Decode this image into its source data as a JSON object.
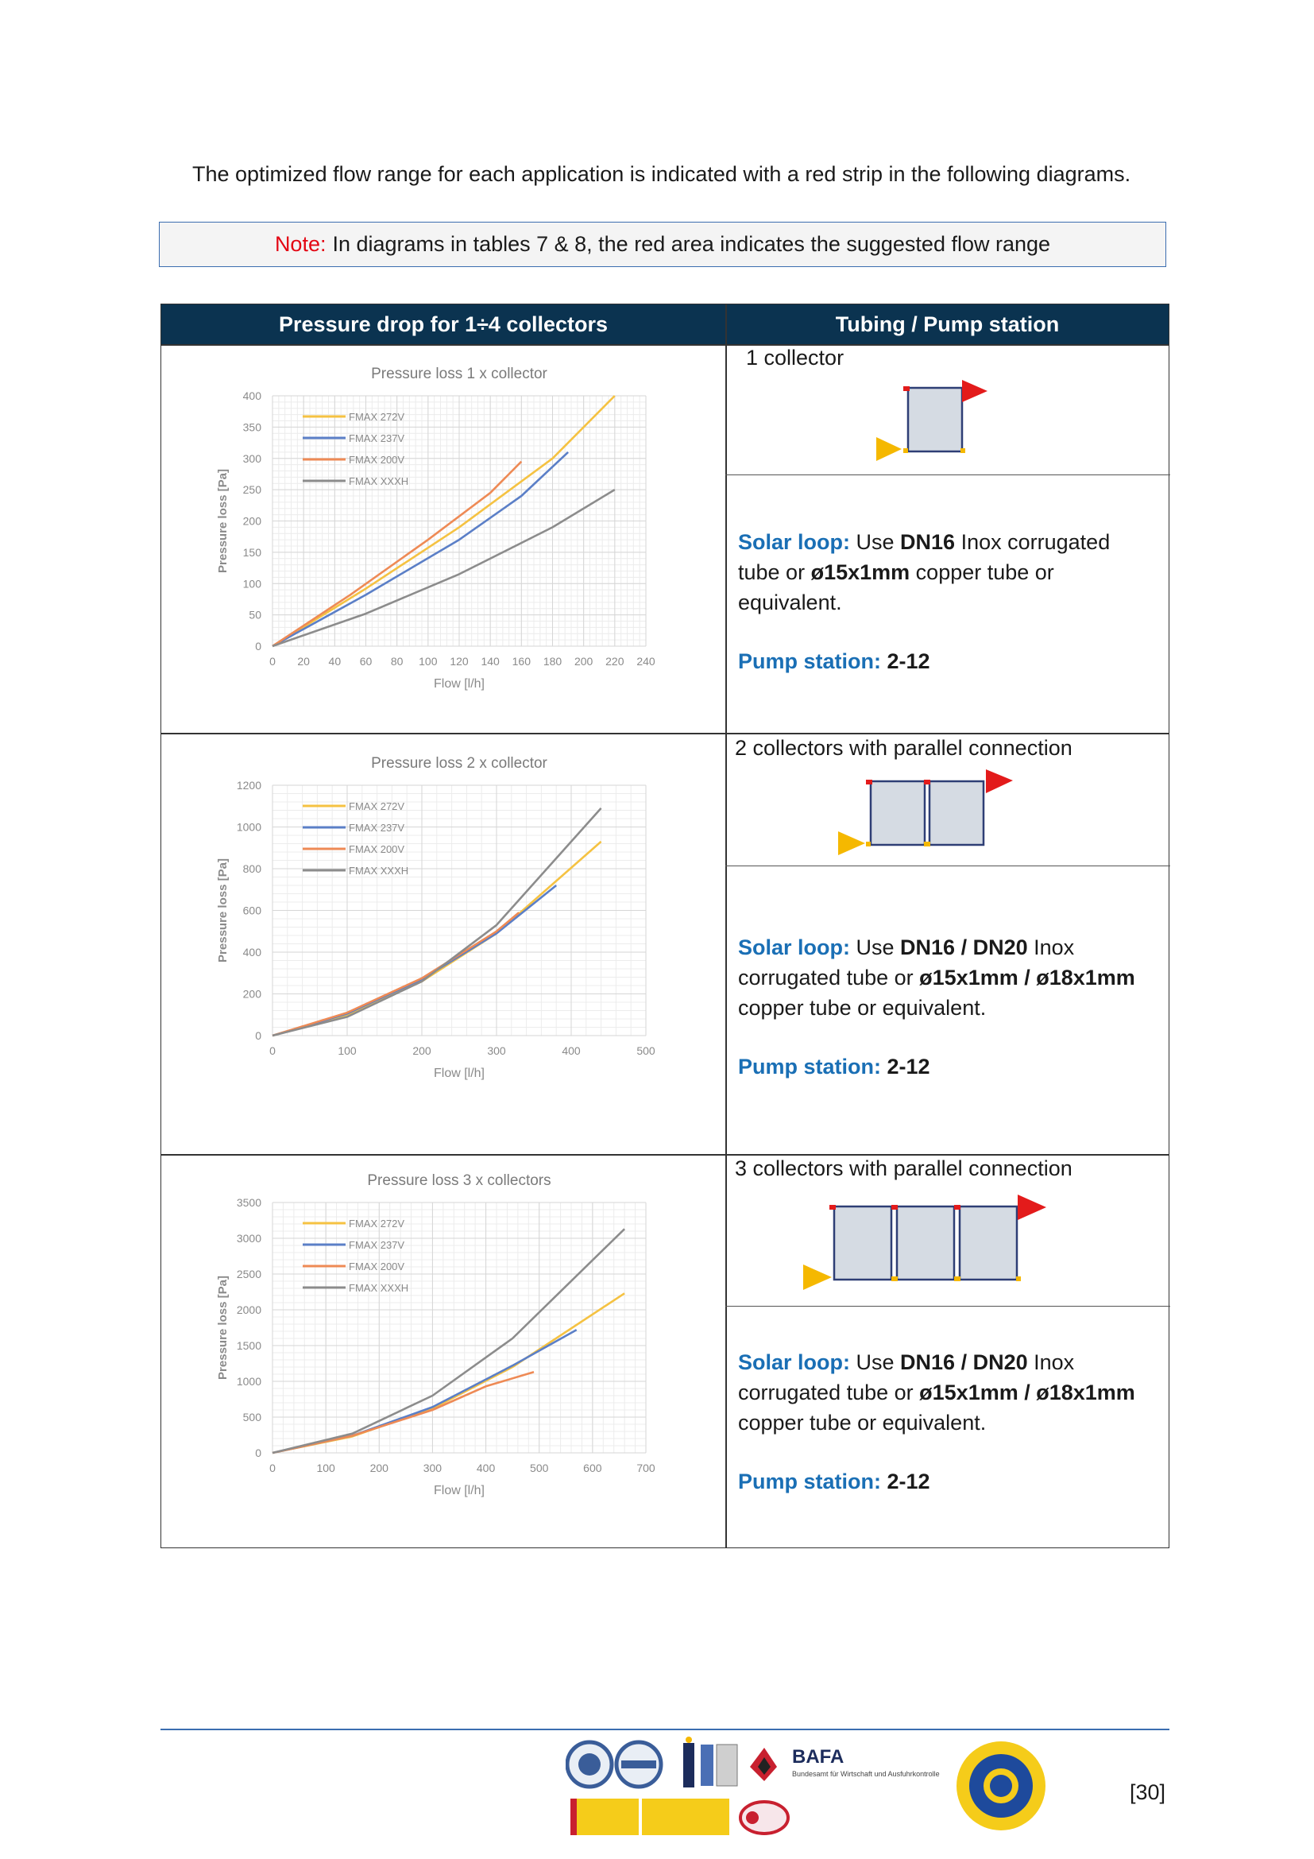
{
  "intro": "The optimized flow range for each application is indicated with a red strip in the following diagrams.",
  "note": {
    "label": "Note:",
    "text": "In diagrams in tables 7 & 8, the red area indicates the suggested flow range"
  },
  "table": {
    "col1_header": "Pressure drop for 1÷4 collectors",
    "col2_header": "Tubing / Pump station"
  },
  "rows": [
    {
      "config": "1 collector",
      "solar_label": "Solar loop:",
      "solar_pre": "Use",
      "solar_b1": "DN16",
      "solar_mid": "Inox corrugated tube or",
      "solar_b2": "ø15x1mm",
      "solar_post": "copper tube or equivalent.",
      "pump_label": "Pump station:",
      "pump_value": "2-12"
    },
    {
      "config": "2 collectors with parallel connection",
      "solar_label": "Solar loop:",
      "solar_pre": "Use",
      "solar_b1": "DN16 / DN20",
      "solar_mid": "Inox corrugated tube or",
      "solar_b2": "ø15x1mm / ø18x1mm",
      "solar_post": "copper tube or equivalent.",
      "pump_label": "Pump station:",
      "pump_value": "2-12"
    },
    {
      "config": "3 collectors with parallel connection",
      "solar_label": "Solar loop:",
      "solar_pre": "Use",
      "solar_b1": "DN16 / DN20",
      "solar_mid": "Inox corrugated tube or",
      "solar_b2": "ø15x1mm / ø18x1mm",
      "solar_post": "copper tube or equivalent.",
      "pump_label": "Pump station:",
      "pump_value": "2-12"
    }
  ],
  "chart_data": [
    {
      "type": "line",
      "title": "Pressure loss 1 x collector",
      "xlabel": "Flow [l/h]",
      "ylabel": "Pressure loss [Pa]",
      "xlim": [
        0,
        240
      ],
      "ylim": [
        0,
        400
      ],
      "xticks": [
        0,
        20,
        40,
        60,
        80,
        100,
        120,
        140,
        160,
        180,
        200,
        220,
        240
      ],
      "yticks": [
        0,
        50,
        100,
        150,
        200,
        250,
        300,
        350,
        400
      ],
      "grid": true,
      "legend": "top-left",
      "series": [
        {
          "name": "FMAX 272V",
          "color": "#f5c242",
          "x": [
            0,
            60,
            120,
            180,
            220
          ],
          "y": [
            0,
            92,
            190,
            300,
            400
          ]
        },
        {
          "name": "FMAX 237V",
          "color": "#5b7fc7",
          "x": [
            0,
            60,
            120,
            160,
            190
          ],
          "y": [
            0,
            82,
            170,
            240,
            310
          ]
        },
        {
          "name": "FMAX 200V",
          "color": "#ee8a55",
          "x": [
            0,
            50,
            100,
            140,
            160
          ],
          "y": [
            0,
            82,
            170,
            245,
            295
          ]
        },
        {
          "name": "FMAX XXXH",
          "color": "#8c8c8c",
          "x": [
            0,
            60,
            120,
            180,
            220
          ],
          "y": [
            0,
            52,
            115,
            190,
            250
          ]
        }
      ]
    },
    {
      "type": "line",
      "title": "Pressure loss 2 x collector",
      "xlabel": "Flow [l/h]",
      "ylabel": "Pressure loss [Pa]",
      "xlim": [
        0,
        500
      ],
      "ylim": [
        0,
        1200
      ],
      "xticks": [
        0,
        100,
        200,
        300,
        400,
        500
      ],
      "yticks": [
        0,
        200,
        400,
        600,
        800,
        1000,
        1200
      ],
      "grid": true,
      "legend": "top-left",
      "series": [
        {
          "name": "FMAX 272V",
          "color": "#f5c242",
          "x": [
            0,
            100,
            200,
            300,
            440
          ],
          "y": [
            0,
            100,
            260,
            490,
            930
          ]
        },
        {
          "name": "FMAX 237V",
          "color": "#5b7fc7",
          "x": [
            0,
            100,
            200,
            300,
            380
          ],
          "y": [
            0,
            105,
            270,
            490,
            720
          ]
        },
        {
          "name": "FMAX 200V",
          "color": "#ee8a55",
          "x": [
            0,
            100,
            200,
            300,
            330
          ],
          "y": [
            0,
            110,
            275,
            500,
            590
          ]
        },
        {
          "name": "FMAX XXXH",
          "color": "#8c8c8c",
          "x": [
            0,
            100,
            200,
            300,
            440
          ],
          "y": [
            0,
            90,
            260,
            530,
            1090
          ]
        }
      ]
    },
    {
      "type": "line",
      "title": "Pressure loss 3 x collectors",
      "xlabel": "Flow [l/h]",
      "ylabel": "Pressure loss [Pa]",
      "xlim": [
        0,
        700
      ],
      "ylim": [
        0,
        3500
      ],
      "xticks": [
        0,
        100,
        200,
        300,
        400,
        500,
        600,
        700
      ],
      "yticks": [
        0,
        500,
        1000,
        1500,
        2000,
        2500,
        3000,
        3500
      ],
      "grid": true,
      "legend": "top-left",
      "series": [
        {
          "name": "FMAX 272V",
          "color": "#f5c242",
          "x": [
            0,
            150,
            300,
            450,
            660
          ],
          "y": [
            0,
            230,
            620,
            1200,
            2230
          ]
        },
        {
          "name": "FMAX 237V",
          "color": "#5b7fc7",
          "x": [
            0,
            150,
            300,
            450,
            570
          ],
          "y": [
            0,
            240,
            640,
            1220,
            1720
          ]
        },
        {
          "name": "FMAX 200V",
          "color": "#ee8a55",
          "x": [
            0,
            150,
            300,
            400,
            490
          ],
          "y": [
            0,
            240,
            600,
            930,
            1130
          ]
        },
        {
          "name": "FMAX XXXH",
          "color": "#8c8c8c",
          "x": [
            0,
            150,
            300,
            450,
            660
          ],
          "y": [
            0,
            270,
            800,
            1600,
            3130
          ]
        }
      ]
    }
  ],
  "page_number": "[30]",
  "logos": {
    "bafa_name": "BAFA",
    "bafa_sub": "Bundesamt für Wirtschaft und Ausfuhrkontrolle"
  },
  "colors": {
    "header_bg": "#0b3350",
    "accent_blue": "#1a6fb5",
    "note_red": "#e30613"
  }
}
